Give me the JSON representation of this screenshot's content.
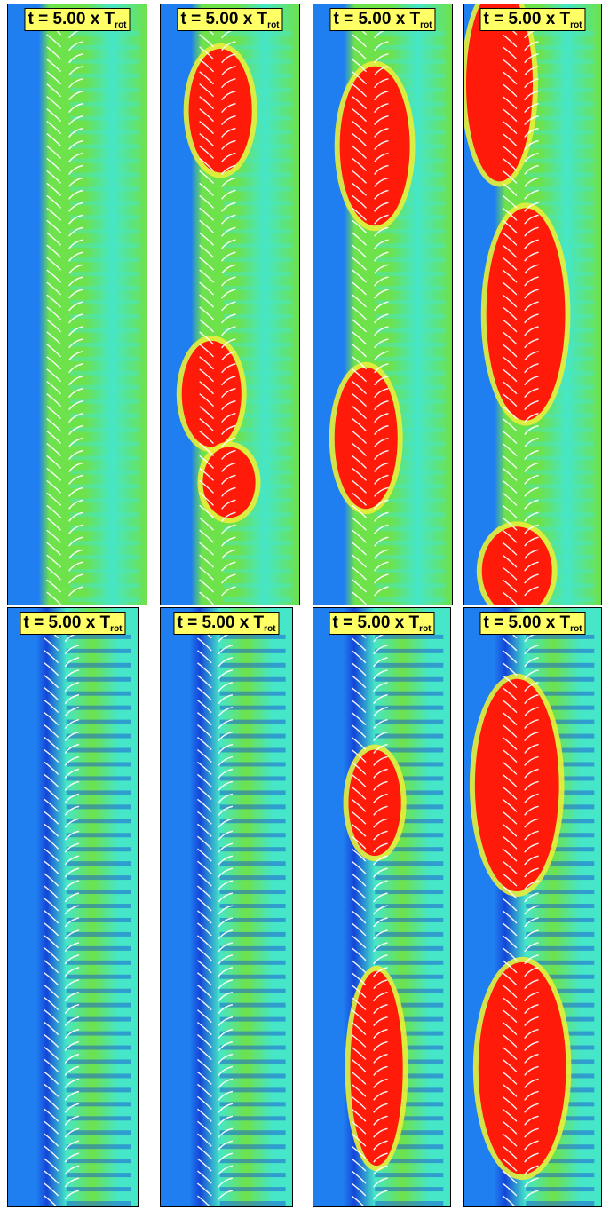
{
  "figure": {
    "label_prefix": "t = 5.00 x T",
    "label_sub": "rot",
    "colors": {
      "background": "#1f7ef0",
      "low": "#1446d8",
      "mid": "#46e6c8",
      "green": "#6ee24a",
      "yellow": "#e8ee3a",
      "high": "#ff1a0a"
    },
    "panels": [
      {
        "id": "top-1",
        "row": 1,
        "state": "uniform-flow"
      },
      {
        "id": "top-2",
        "row": 1,
        "state": "two-stall-cells"
      },
      {
        "id": "top-3",
        "row": 1,
        "state": "two-stall-cells"
      },
      {
        "id": "top-4",
        "row": 1,
        "state": "large-stall-cells"
      },
      {
        "id": "bottom-1",
        "row": 2,
        "state": "uniform-flow"
      },
      {
        "id": "bottom-2",
        "row": 2,
        "state": "uniform-flow"
      },
      {
        "id": "bottom-3",
        "row": 2,
        "state": "two-stall-cells"
      },
      {
        "id": "bottom-4",
        "row": 2,
        "state": "large-stall-cells"
      }
    ]
  }
}
